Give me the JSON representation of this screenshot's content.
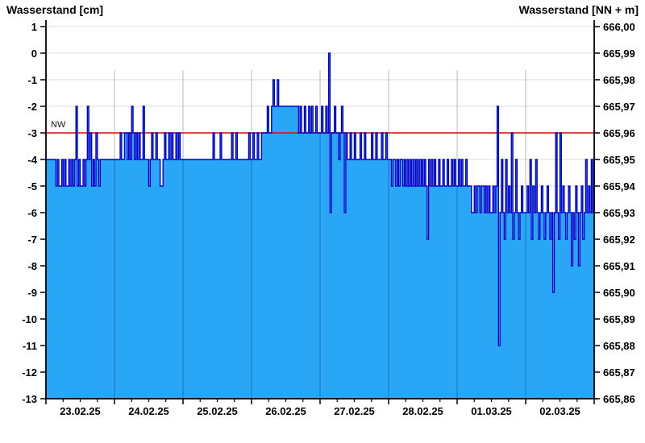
{
  "chart_data": {
    "type": "area",
    "title_left": "Wasserstand [cm]",
    "title_right": "Wasserstand [NN + m]",
    "x_tick_labels": [
      "23.02.25",
      "24.02.25",
      "25.02.25",
      "26.02.25",
      "27.02.25",
      "28.02.25",
      "01.03.25",
      "02.03.25"
    ],
    "y_axis_left": {
      "title": "Wasserstand [cm]",
      "unit": "cm",
      "tick_labels": [
        "1",
        "0",
        "-1",
        "-2",
        "-3",
        "-4",
        "-5",
        "-6",
        "-7",
        "-8",
        "-9",
        "-10",
        "-11",
        "-12",
        "-13"
      ]
    },
    "y_axis_right": {
      "title": "Wasserstand [NN + m]",
      "unit": "NN + m",
      "tick_labels": [
        "666,00",
        "665,99",
        "665,98",
        "665,97",
        "665,96",
        "665,95",
        "665,94",
        "665,93",
        "665,92",
        "665,91",
        "665,90",
        "665,89",
        "665,88",
        "665,87",
        "665,86"
      ]
    },
    "ylim_cm": [
      -13,
      1
    ],
    "grid": true,
    "reference_line": {
      "label": "NW",
      "value_cm": -3,
      "color": "#EE0000"
    },
    "sampling_interval_minutes": 30,
    "series": [
      {
        "name": "Wasserstand",
        "unit": "cm",
        "days": [
          {
            "date": "23.02.25",
            "values": [
              -4,
              -4,
              -4,
              -4,
              -4,
              -4,
              -4,
              -5,
              -4,
              -5,
              -5,
              -4,
              -5,
              -4,
              -5,
              -5,
              -4,
              -5,
              -4,
              -5,
              -4,
              -2,
              -5,
              -4,
              -5,
              -5,
              -4,
              -5,
              -4,
              -2,
              -4,
              -3,
              -5,
              -4,
              -5,
              -3,
              -4,
              -5,
              -4,
              -4,
              -4,
              -4,
              -4,
              -4,
              -4,
              -4,
              -4,
              -4
            ]
          },
          {
            "date": "24.02.25",
            "values": [
              -4,
              -4,
              -4,
              -4,
              -3,
              -4,
              -4,
              -3,
              -3,
              -4,
              -3,
              -4,
              -2,
              -3,
              -4,
              -3,
              -4,
              -3,
              -4,
              -4,
              -2,
              -4,
              -4,
              -4,
              -5,
              -4,
              -3,
              -4,
              -4,
              -3,
              -4,
              -4,
              -5,
              -5,
              -4,
              -3,
              -4,
              -4,
              -3,
              -4,
              -3,
              -4,
              -4,
              -3,
              -4,
              -3,
              -4,
              -4
            ]
          },
          {
            "date": "25.02.25",
            "values": [
              -4,
              -4,
              -4,
              -4,
              -4,
              -4,
              -4,
              -4,
              -4,
              -4,
              -4,
              -4,
              -4,
              -4,
              -4,
              -4,
              -4,
              -4,
              -4,
              -4,
              -4,
              -3,
              -4,
              -4,
              -4,
              -4,
              -3,
              -4,
              -4,
              -4,
              -4,
              -4,
              -4,
              -4,
              -3,
              -4,
              -4,
              -3,
              -4,
              -4,
              -4,
              -4,
              -4,
              -4,
              -4,
              -4,
              -3,
              -4
            ]
          },
          {
            "date": "26.02.25",
            "values": [
              -4,
              -3,
              -4,
              -4,
              -3,
              -4,
              -4,
              -3,
              -3,
              -3,
              -3,
              -2,
              -3,
              -3,
              -2,
              -1,
              -2,
              -2,
              -1,
              -2,
              -2,
              -2,
              -2,
              -2,
              -2,
              -2,
              -2,
              -2,
              -2,
              -2,
              -2,
              -2,
              -2,
              -3,
              -2,
              -3,
              -3,
              -2,
              -3,
              -3,
              -2,
              -3,
              -2,
              -3,
              -3,
              -2,
              -3,
              -3
            ]
          },
          {
            "date": "27.02.25",
            "values": [
              -3,
              -2,
              -3,
              -3,
              -2,
              -3,
              0,
              -6,
              -3,
              -3,
              -2,
              -3,
              -3,
              -4,
              -3,
              -2,
              -3,
              -6,
              -3,
              -4,
              -4,
              -3,
              -4,
              -4,
              -3,
              -4,
              -4,
              -4,
              -3,
              -4,
              -4,
              -3,
              -4,
              -4,
              -4,
              -4,
              -3,
              -4,
              -4,
              -3,
              -4,
              -4,
              -4,
              -3,
              -4,
              -4,
              -3,
              -4
            ]
          },
          {
            "date": "28.02.25",
            "values": [
              -4,
              -4,
              -5,
              -4,
              -4,
              -5,
              -4,
              -5,
              -4,
              -4,
              -5,
              -4,
              -5,
              -4,
              -5,
              -4,
              -5,
              -4,
              -5,
              -4,
              -5,
              -4,
              -5,
              -4,
              -5,
              -4,
              -5,
              -7,
              -4,
              -5,
              -4,
              -5,
              -4,
              -5,
              -5,
              -4,
              -5,
              -5,
              -4,
              -5,
              -5,
              -4,
              -5,
              -5,
              -4,
              -5,
              -4,
              -5
            ]
          },
          {
            "date": "01.03.25",
            "values": [
              -5,
              -4,
              -5,
              -4,
              -5,
              -5,
              -4,
              -5,
              -5,
              -5,
              -6,
              -6,
              -5,
              -6,
              -5,
              -5,
              -6,
              -5,
              -5,
              -6,
              -5,
              -6,
              -5,
              -6,
              -6,
              -5,
              -6,
              -5,
              -2,
              -11,
              -6,
              -4,
              -6,
              -7,
              -4,
              -6,
              -5,
              -6,
              -3,
              -7,
              -6,
              -4,
              -6,
              -7,
              -6,
              -5,
              -6,
              -6
            ]
          },
          {
            "date": "02.03.25",
            "values": [
              -6,
              -5,
              -6,
              -4,
              -7,
              -5,
              -6,
              -4,
              -6,
              -7,
              -6,
              -5,
              -6,
              -7,
              -6,
              -5,
              -6,
              -7,
              -6,
              -9,
              -6,
              -3,
              -6,
              -7,
              -3,
              -6,
              -5,
              -6,
              -7,
              -6,
              -5,
              -6,
              -8,
              -6,
              -7,
              -5,
              -6,
              -8,
              -6,
              -5,
              -7,
              -6,
              -4,
              -6,
              -5,
              -6,
              -4,
              -6
            ]
          }
        ]
      }
    ],
    "colors": {
      "fill": "#29A6F6",
      "line": "#0000CC",
      "reference": "#EE0000",
      "grid": "#DEDEDE",
      "axis": "#000000"
    }
  }
}
